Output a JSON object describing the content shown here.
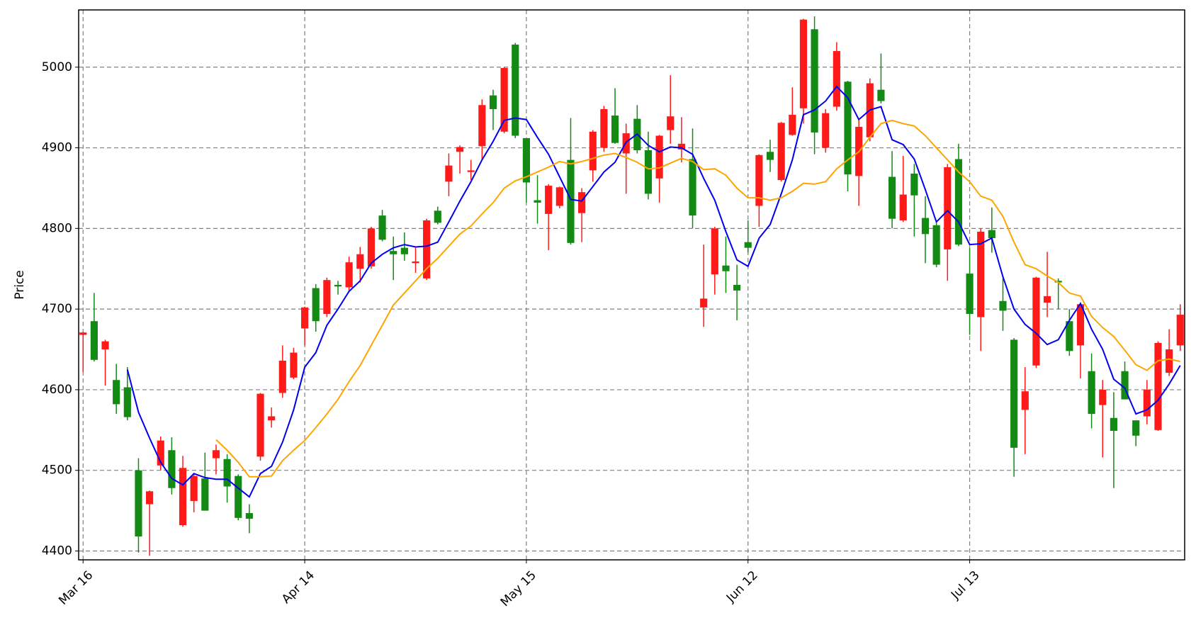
{
  "chart_data": {
    "type": "candlestick",
    "ylabel": "Price",
    "categories": [
      "Mar 16",
      null,
      null,
      null,
      null,
      null,
      null,
      null,
      null,
      null,
      null,
      null,
      null,
      null,
      null,
      null,
      null,
      null,
      null,
      null,
      "Apr 14",
      null,
      null,
      null,
      null,
      null,
      null,
      null,
      null,
      null,
      null,
      null,
      null,
      null,
      null,
      null,
      null,
      null,
      null,
      null,
      "May 15",
      null,
      null,
      null,
      null,
      null,
      null,
      null,
      null,
      null,
      null,
      null,
      null,
      null,
      null,
      null,
      null,
      null,
      null,
      null,
      "Jun 12",
      null,
      null,
      null,
      null,
      null,
      null,
      null,
      null,
      null,
      null,
      null,
      null,
      null,
      null,
      null,
      null,
      null,
      null,
      null,
      "Jul 13",
      null,
      null,
      null,
      null,
      null,
      null,
      null,
      null,
      null,
      null,
      null,
      null,
      null,
      null,
      null,
      null,
      null,
      null,
      null
    ],
    "open": [
      4668,
      4685,
      4650,
      4612,
      4603,
      4500,
      4458,
      4506,
      4525,
      4432,
      4462,
      4490,
      4515,
      4514,
      4493,
      4447,
      4517,
      4562,
      4596,
      4615,
      4676,
      4726,
      4694,
      4730,
      4727,
      4750,
      4753,
      4816,
      4772,
      4776,
      4757,
      4738,
      4822,
      4858,
      4895,
      4870,
      4902,
      4965,
      4920,
      5028,
      4912,
      4835,
      4818,
      4828,
      4885,
      4819,
      4872,
      4900,
      4940,
      4893,
      4936,
      4897,
      4862,
      4922,
      4898,
      4886,
      4702,
      4743,
      4754,
      4730,
      4783,
      4828,
      4895,
      4860,
      4916,
      4949,
      5047,
      4900,
      4951,
      4982,
      4865,
      4913,
      4972,
      4864,
      4810,
      4868,
      4813,
      4804,
      4774,
      4886,
      4744,
      4690,
      4798,
      4710,
      4662,
      4575,
      4630,
      4708,
      4735,
      4685,
      4655,
      4623,
      4581,
      4565,
      4623,
      4562,
      4567,
      4550,
      4621,
      4655
    ],
    "high": [
      4672,
      4720,
      4662,
      4632,
      4628,
      4515,
      4475,
      4542,
      4541,
      4518,
      4495,
      4522,
      4532,
      4520,
      4495,
      4458,
      4596,
      4578,
      4655,
      4652,
      4703,
      4731,
      4739,
      4735,
      4765,
      4777,
      4802,
      4823,
      4790,
      4795,
      4776,
      4812,
      4827,
      4893,
      4903,
      4885,
      4960,
      4972,
      5000,
      5030,
      4912,
      4866,
      4855,
      4852,
      4937,
      4850,
      4922,
      4952,
      4974,
      4930,
      4953,
      4920,
      4916,
      4990,
      4938,
      4924,
      4780,
      4802,
      4790,
      4755,
      4810,
      4892,
      4910,
      4932,
      4975,
      5060,
      5063,
      4948,
      5031,
      4983,
      4935,
      4986,
      5017,
      4896,
      4890,
      4880,
      4840,
      4810,
      4880,
      4905,
      4776,
      4800,
      4826,
      4738,
      4664,
      4628,
      4740,
      4771,
      4738,
      4700,
      4708,
      4645,
      4612,
      4597,
      4635,
      4562,
      4612,
      4660,
      4675,
      4706
    ],
    "low": [
      4622,
      4635,
      4605,
      4570,
      4562,
      4398,
      4394,
      4500,
      4470,
      4430,
      4448,
      4450,
      4495,
      4460,
      4438,
      4422,
      4512,
      4553,
      4590,
      4613,
      4655,
      4672,
      4690,
      4718,
      4722,
      4733,
      4750,
      4784,
      4736,
      4760,
      4745,
      4736,
      4805,
      4840,
      4868,
      4860,
      4885,
      4922,
      4918,
      4912,
      4832,
      4806,
      4773,
      4825,
      4780,
      4783,
      4858,
      4895,
      4905,
      4843,
      4893,
      4836,
      4832,
      4905,
      4882,
      4800,
      4678,
      4718,
      4720,
      4686,
      4770,
      4802,
      4870,
      4858,
      4915,
      4930,
      4892,
      4894,
      4946,
      4846,
      4828,
      4908,
      4955,
      4800,
      4808,
      4790,
      4757,
      4752,
      4735,
      4778,
      4668,
      4648,
      4770,
      4673,
      4492,
      4520,
      4627,
      4690,
      4700,
      4642,
      4614,
      4552,
      4516,
      4478,
      4588,
      4530,
      4557,
      4549,
      4617,
      4648
    ],
    "close": [
      4671,
      4637,
      4660,
      4582,
      4566,
      4418,
      4474,
      4537,
      4478,
      4503,
      4493,
      4450,
      4525,
      4480,
      4441,
      4440,
      4595,
      4567,
      4636,
      4646,
      4702,
      4685,
      4736,
      4728,
      4758,
      4768,
      4800,
      4786,
      4768,
      4768,
      4759,
      4810,
      4807,
      4878,
      4901,
      4872,
      4953,
      4948,
      4999,
      4915,
      4857,
      4832,
      4853,
      4851,
      4782,
      4845,
      4920,
      4948,
      4906,
      4918,
      4897,
      4843,
      4915,
      4939,
      4905,
      4816,
      4713,
      4800,
      4747,
      4723,
      4776,
      4891,
      4885,
      4931,
      4941,
      5059,
      4919,
      4943,
      5020,
      4867,
      4926,
      4980,
      4958,
      4812,
      4842,
      4841,
      4793,
      4755,
      4876,
      4780,
      4694,
      4796,
      4788,
      4698,
      4528,
      4598,
      4739,
      4716,
      4733,
      4648,
      4706,
      4570,
      4600,
      4549,
      4588,
      4543,
      4600,
      4658,
      4650,
      4693
    ],
    "up_color": "#ff1a1a",
    "down_color": "#138a13",
    "series": [
      {
        "color": "#0000ee",
        "values": [
          null,
          null,
          null,
          null,
          4625,
          4572,
          4540,
          4510,
          4490,
          4482,
          4496,
          4491,
          4489,
          4489,
          4478,
          4467,
          4496,
          4505,
          4535,
          4575,
          4628,
          4646,
          4680,
          4700,
          4722,
          4735,
          4757,
          4768,
          4776,
          4780,
          4777,
          4778,
          4783,
          4808,
          4834,
          4858,
          4885,
          4908,
          4934,
          4937,
          4935,
          4913,
          4892,
          4864,
          4836,
          4834,
          4852,
          4870,
          4882,
          4907,
          4917,
          4903,
          4895,
          4901,
          4900,
          4892,
          4862,
          4835,
          4796,
          4761,
          4753,
          4788,
          4805,
          4843,
          4885,
          4941,
          4947,
          4958,
          4976,
          4962,
          4935,
          4947,
          4951,
          4910,
          4904,
          4886,
          4848,
          4808,
          4822,
          4808,
          4780,
          4781,
          4788,
          4740,
          4700,
          4681,
          4670,
          4656,
          4662,
          4686,
          4707,
          4675,
          4650,
          4613,
          4602,
          4570,
          4575,
          4587,
          4607,
          4630
        ]
      },
      {
        "color": "#ffa500",
        "values": [
          null,
          null,
          null,
          null,
          null,
          null,
          null,
          null,
          null,
          null,
          null,
          null,
          4538,
          4525,
          4510,
          4492,
          4492,
          4493,
          4512,
          4525,
          4537,
          4553,
          4570,
          4588,
          4610,
          4630,
          4655,
          4680,
          4705,
          4720,
          4735,
          4750,
          4763,
          4778,
          4793,
          4803,
          4818,
          4832,
          4850,
          4859,
          4864,
          4870,
          4876,
          4883,
          4880,
          4883,
          4887,
          4891,
          4893,
          4888,
          4882,
          4874,
          4875,
          4881,
          4887,
          4883,
          4873,
          4874,
          4866,
          4850,
          4838,
          4838,
          4835,
          4838,
          4846,
          4856,
          4855,
          4858,
          4874,
          4885,
          4895,
          4913,
          4930,
          4934,
          4930,
          4927,
          4915,
          4900,
          4885,
          4870,
          4858,
          4840,
          4835,
          4815,
          4783,
          4755,
          4750,
          4741,
          4733,
          4720,
          4716,
          4691,
          4677,
          4666,
          4649,
          4631,
          4624,
          4636,
          4638,
          4635
        ]
      }
    ],
    "xlim": [
      -0.4,
      99.4
    ],
    "ylim": [
      4389,
      5071
    ],
    "yticks": [
      4400,
      4500,
      4600,
      4700,
      4800,
      4900,
      5000
    ],
    "grid": true
  }
}
